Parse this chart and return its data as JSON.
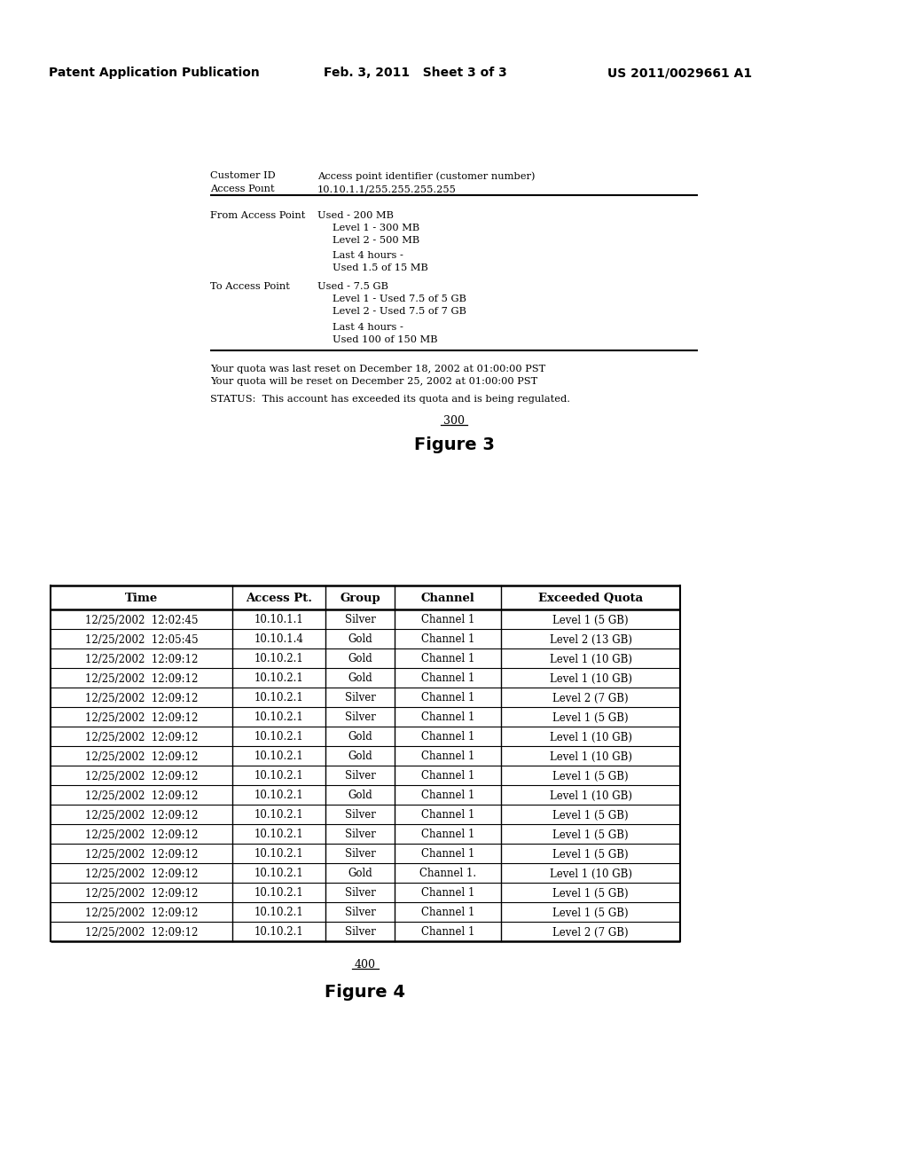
{
  "header_left": "Patent Application Publication",
  "header_mid": "Feb. 3, 2011   Sheet 3 of 3",
  "header_right": "US 2011/0029661 A1",
  "fig3_label": "300",
  "fig3_caption": "Figure 3",
  "fig4_label": "400",
  "fig4_caption": "Figure 4",
  "info_block": {
    "customer_id_label": "Customer ID",
    "customer_id_value": "Access point identifier (customer number)",
    "access_point_label": "Access Poınt",
    "access_point_value": "10.10.1.1/255.255.255.255",
    "from_label": "From Access Point",
    "from_line1": "Used - 200 MB",
    "from_line2": "Level 1 - 300 MB",
    "from_line3": "Level 2 - 500 MB",
    "from_last4h": "Last 4 hours -",
    "from_used": "Used 1.5 of 15 MB",
    "to_label": "To Access Point",
    "to_line1": "Used - 7.5 GB",
    "to_line2": "Level 1 - Used 7.5 of 5 GB",
    "to_line3": "Level 2 - Used 7.5 of 7 GB",
    "to_last4h": "Last 4 hours -",
    "to_used": "Used 100 of 150 MB",
    "quota_reset1": "Your quota was last reset on December 18, 2002 at 01:00:00 PST",
    "quota_reset2": "Your quota will be reset on December 25, 2002 at 01:00:00 PST",
    "status": "STATUS:  This account has exceeded its quota and is being regulated."
  },
  "table_headers": [
    "Time",
    "Access Pt.",
    "Group",
    "Channel",
    "Exceeded Quota"
  ],
  "table_rows": [
    [
      "12/25/2002  12:02:45",
      "10.10.1.1",
      "Silver",
      "Channel 1",
      "Level 1 (5 GB)"
    ],
    [
      "12/25/2002  12:05:45",
      "10.10.1.4",
      "Gold",
      "Channel 1",
      "Level 2 (13 GB)"
    ],
    [
      "12/25/2002  12:09:12",
      "10.10.2.1",
      "Gold",
      "Channel 1",
      "Level 1 (10 GB)"
    ],
    [
      "12/25/2002  12:09:12",
      "10.10.2.1",
      "Gold",
      "Channel 1",
      "Level 1 (10 GB)"
    ],
    [
      "12/25/2002  12:09:12",
      "10.10.2.1",
      "Silver",
      "Channel 1",
      "Level 2 (7 GB)"
    ],
    [
      "12/25/2002  12:09:12",
      "10.10.2.1",
      "Silver",
      "Channel 1",
      "Level 1 (5 GB)"
    ],
    [
      "12/25/2002  12:09:12",
      "10.10.2.1",
      "Gold",
      "Channel 1",
      "Level 1 (10 GB)"
    ],
    [
      "12/25/2002  12:09:12",
      "10.10.2.1",
      "Gold",
      "Channel 1",
      "Level 1 (10 GB)"
    ],
    [
      "12/25/2002  12:09:12",
      "10.10.2.1",
      "Silver",
      "Channel 1",
      "Level 1 (5 GB)"
    ],
    [
      "12/25/2002  12:09:12",
      "10.10.2.1",
      "Gold",
      "Channel 1",
      "Level 1 (10 GB)"
    ],
    [
      "12/25/2002  12:09:12",
      "10.10.2.1",
      "Silver",
      "Channel 1",
      "Level 1 (5 GB)"
    ],
    [
      "12/25/2002  12:09:12",
      "10.10.2.1",
      "Silver",
      "Channel 1",
      "Level 1 (5 GB)"
    ],
    [
      "12/25/2002  12:09:12",
      "10.10.2.1",
      "Silver",
      "Channel 1",
      "Level 1 (5 GB)"
    ],
    [
      "12/25/2002  12:09:12",
      "10.10.2.1",
      "Gold",
      "Channel 1.",
      "Level 1 (10 GB)"
    ],
    [
      "12/25/2002  12:09:12",
      "10.10.2.1",
      "Silver",
      "Channel 1",
      "Level 1 (5 GB)"
    ],
    [
      "12/25/2002  12:09:12",
      "10.10.2.1",
      "Silver",
      "Channel 1",
      "Level 1 (5 GB)"
    ],
    [
      "12/25/2002  12:09:12",
      "10.10.2.1",
      "Silver",
      "Channel 1",
      "Level 2 (7 GB)"
    ]
  ],
  "bg_color": "#ffffff",
  "text_color": "#000000"
}
